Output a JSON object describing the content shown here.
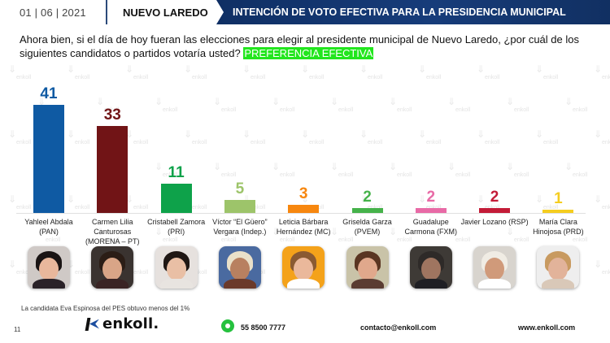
{
  "header": {
    "date": "01 | 06 | 2021",
    "city": "NUEVO LAREDO",
    "title": "INTENCIÓN DE VOTO EFECTIVA PARA LA PRESIDENCIA MUNICIPAL"
  },
  "question": {
    "text": "Ahora bien, si el día de hoy fueran las elecciones para elegir al presidente municipal de Nuevo Laredo, ¿por cuál de los siguientes candidatos o partidos votaría usted? ",
    "highlight": "PREFERENCIA EFECTIVA"
  },
  "chart_data": {
    "type": "bar",
    "title": "INTENCIÓN DE VOTO EFECTIVA PARA LA PRESIDENCIA MUNICIPAL",
    "subtitle": "PREFERENCIA EFECTIVA",
    "xlabel": "",
    "ylabel": "",
    "ylim": [
      0,
      45
    ],
    "grid": false,
    "legend": "none",
    "categories": [
      "Yahleel Abdala (PAN)",
      "Carmen Lilia Canturosas (MORENA – PT)",
      "Cristabell Zamora (PRI)",
      "Víctor “El Güero” Vergara (Indep.)",
      "Leticia Bárbara Hernández (MC)",
      "Griselda Garza (PVEM)",
      "Guadalupe Carmona (FXM)",
      "Javier Lozano (RSP)",
      "María Clara Hinojosa (PRD)"
    ],
    "values": [
      41,
      33,
      11,
      5,
      3,
      2,
      2,
      2,
      1
    ],
    "colors": [
      "#0f5aa3",
      "#711416",
      "#0ea24a",
      "#9dc46a",
      "#f7870f",
      "#45b24a",
      "#e86aa6",
      "#c31b37",
      "#f5cd1f"
    ],
    "value_labels": [
      "41",
      "33",
      "11",
      "5",
      "3",
      "2",
      "2",
      "2",
      "1"
    ]
  },
  "candidates": [
    {
      "line1": "Yahleel Abdala",
      "line2": "(PAN)",
      "line3": ""
    },
    {
      "line1": "Carmen Lilia",
      "line2": "Canturosas",
      "line3": "(MORENA – PT)"
    },
    {
      "line1": "Cristabell Zamora",
      "line2": "(PRI)",
      "line3": ""
    },
    {
      "line1": "Víctor “El Güero”",
      "line2": "Vergara (Indep.)",
      "line3": ""
    },
    {
      "line1": "Leticia Bárbara",
      "line2": "Hernández (MC)",
      "line3": ""
    },
    {
      "line1": "Griselda Garza",
      "line2": "(PVEM)",
      "line3": ""
    },
    {
      "line1": "Guadalupe",
      "line2": "Carmona (FXM)",
      "line3": ""
    },
    {
      "line1": "Javier Lozano (RSP)",
      "line2": "",
      "line3": ""
    },
    {
      "line1": "María Clara",
      "line2": "Hinojosa (PRD)",
      "line3": ""
    }
  ],
  "footnote": "La candidata Eva Espinosa del PES obtuvo menos del 1%",
  "footer": {
    "page_number": "11",
    "logo": "enkoll.",
    "phone": "55 8500 7777",
    "email": "contacto@enkoll.com",
    "website": "www.enkoll.com"
  }
}
